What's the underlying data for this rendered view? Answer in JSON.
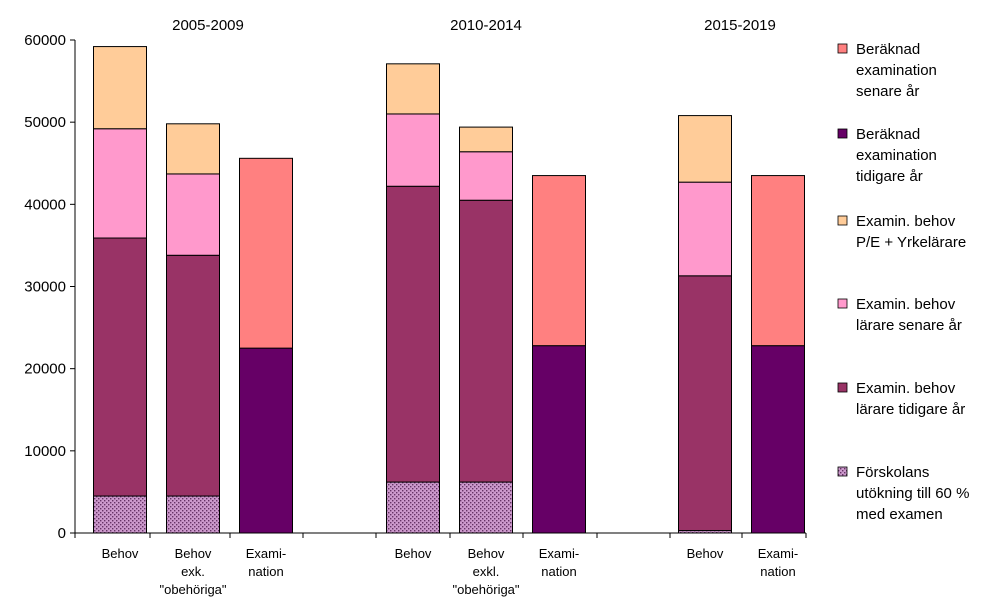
{
  "chart_data": {
    "type": "bar",
    "stacked": true,
    "ylim": [
      0,
      60000
    ],
    "yticks": [
      "0",
      "10000",
      "20000",
      "30000",
      "40000",
      "50000",
      "60000"
    ],
    "grid": false,
    "legend_position": "right",
    "groups": [
      {
        "label": "2005-2009",
        "bars": [
          {
            "label": [
              "Behov"
            ],
            "segments": {
              "forskolan": 4500,
              "tidigare": 31400,
              "senare": 13300,
              "pe": 10000
            }
          },
          {
            "label": [
              "Behov",
              "exk.",
              "\"obehöriga\""
            ],
            "segments": {
              "forskolan": 4500,
              "tidigare": 29300,
              "senare": 9900,
              "pe": 6100
            }
          },
          {
            "label": [
              "Exami-",
              "nation"
            ],
            "segments": {
              "ber_tidigare": 22500,
              "ber_senare": 23100
            }
          }
        ]
      },
      {
        "label": "2010-2014",
        "bars": [
          {
            "label": [
              "Behov"
            ],
            "segments": {
              "forskolan": 6200,
              "tidigare": 36000,
              "senare": 8800,
              "pe": 6100
            }
          },
          {
            "label": [
              "Behov",
              "exkl.",
              "\"obehöriga\""
            ],
            "segments": {
              "forskolan": 6200,
              "tidigare": 34300,
              "senare": 5900,
              "pe": 3000
            }
          },
          {
            "label": [
              "Exami-",
              "nation"
            ],
            "segments": {
              "ber_tidigare": 22800,
              "ber_senare": 20700
            }
          }
        ]
      },
      {
        "label": "2015-2019",
        "bars": [
          {
            "label": [
              "Behov"
            ],
            "segments": {
              "forskolan": 300,
              "tidigare": 31000,
              "senare": 11400,
              "pe": 8100
            }
          },
          {
            "label": [
              "Exami-",
              "nation"
            ],
            "segments": {
              "ber_tidigare": 22800,
              "ber_senare": 20700
            }
          }
        ]
      }
    ],
    "series": [
      {
        "key": "ber_senare",
        "name": [
          "Beräknad",
          "examination",
          "senare år"
        ],
        "color": "#ff8080"
      },
      {
        "key": "ber_tidigare",
        "name": [
          "Beräknad",
          "examination",
          "tidigare år"
        ],
        "color": "#660066"
      },
      {
        "key": "pe",
        "name": [
          "Examin. behov",
          "P/E + Yrkelärare"
        ],
        "color": "#ffcc99"
      },
      {
        "key": "senare",
        "name": [
          "Examin. behov",
          "lärare senare år"
        ],
        "color": "#ff99cc"
      },
      {
        "key": "tidigare",
        "name": [
          "Examin. behov",
          "lärare tidigare år"
        ],
        "color": "#993366"
      },
      {
        "key": "forskolan",
        "name": [
          "Förskolans",
          "utökning till 60 %",
          "med examen"
        ],
        "color": "#cc99cc",
        "pattern": "dots"
      }
    ]
  }
}
